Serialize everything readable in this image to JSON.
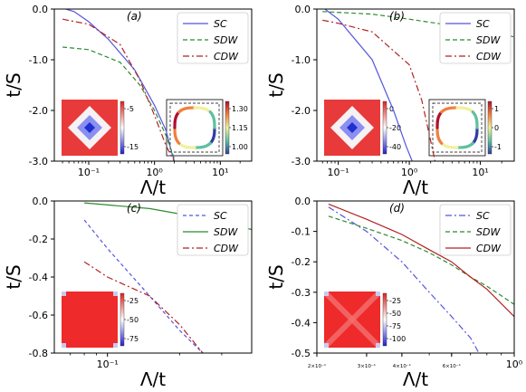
{
  "chart_data": [
    {
      "type": "line",
      "panel_label": "(a)",
      "xscale": "log",
      "xlim": [
        0.03,
        30
      ],
      "ylim": [
        -3.0,
        0.0
      ],
      "xlabel": "Λ/t",
      "ylabel": "t/S",
      "yticks": [
        "0.0",
        "-1.0",
        "-2.0",
        "-3.0"
      ],
      "xticks": [
        "10⁻¹",
        "10⁰",
        "10¹"
      ],
      "legend_position": "top-right",
      "series": [
        {
          "name": "SC",
          "x": [
            0.045,
            0.06,
            0.1,
            0.2,
            0.5,
            1.0,
            1.5,
            1.8,
            2.0
          ],
          "y": [
            0.0,
            -0.05,
            -0.25,
            -0.6,
            -1.2,
            -1.9,
            -2.4,
            -2.8,
            -3.0
          ]
        },
        {
          "name": "SDW",
          "x": [
            0.04,
            0.1,
            0.3,
            0.6,
            1.0,
            1.5,
            2.0
          ],
          "y": [
            -0.75,
            -0.8,
            -1.05,
            -1.5,
            -2.0,
            -2.5,
            -2.95
          ]
        },
        {
          "name": "CDW",
          "x": [
            0.04,
            0.1,
            0.3,
            0.6,
            1.0,
            1.5,
            2.0
          ],
          "y": [
            -0.2,
            -0.3,
            -0.7,
            -1.4,
            -2.1,
            -2.7,
            -3.0
          ]
        }
      ],
      "insets": [
        {
          "kind": "heatmap-diamond",
          "colorbar_ticks": [
            "-5",
            "-15"
          ]
        },
        {
          "kind": "fermi-surface",
          "colorbar_ticks": [
            "1.30",
            "1.15",
            "1.00"
          ]
        }
      ]
    },
    {
      "type": "line",
      "panel_label": "(b)",
      "xscale": "log",
      "xlim": [
        0.05,
        30
      ],
      "ylim": [
        -3.0,
        0.0
      ],
      "xlabel": "Λ/t",
      "ylabel": "t/S",
      "yticks": [
        "0.0",
        "-1.0",
        "-2.0",
        "-3.0"
      ],
      "xticks": [
        "10⁻¹",
        "10⁰",
        "10¹"
      ],
      "legend_position": "top-right",
      "series": [
        {
          "name": "SC",
          "x": [
            0.065,
            0.1,
            0.3,
            0.6,
            0.9,
            1.1
          ],
          "y": [
            0.0,
            -0.2,
            -1.0,
            -2.0,
            -2.7,
            -3.0
          ]
        },
        {
          "name": "SDW",
          "x": [
            0.06,
            0.3,
            1.0,
            3.0,
            10,
            30
          ],
          "y": [
            -0.05,
            -0.1,
            -0.2,
            -0.3,
            -0.4,
            -0.55
          ]
        },
        {
          "name": "CDW",
          "x": [
            0.06,
            0.1,
            0.3,
            1.0,
            1.5,
            2.0,
            2.3
          ],
          "y": [
            -0.22,
            -0.28,
            -0.45,
            -1.1,
            -1.8,
            -2.6,
            -3.0
          ]
        }
      ],
      "insets": [
        {
          "kind": "heatmap-diamond",
          "colorbar_ticks": [
            "0",
            "-20",
            "-40"
          ]
        },
        {
          "kind": "fermi-surface",
          "colorbar_ticks": [
            "1",
            "0",
            "-1"
          ]
        }
      ]
    },
    {
      "type": "line",
      "panel_label": "(c)",
      "xscale": "log",
      "xlim": [
        0.06,
        0.4
      ],
      "ylim": [
        -0.8,
        0.0
      ],
      "xlabel": "Λ/t",
      "ylabel": "t/S",
      "yticks": [
        "0.0",
        "-0.2",
        "-0.4",
        "-0.6",
        "-0.8"
      ],
      "xticks": [
        "10⁻¹"
      ],
      "legend_position": "top-right",
      "series": [
        {
          "name": "SC",
          "x": [
            0.08,
            0.1,
            0.15,
            0.2,
            0.25
          ],
          "y": [
            -0.1,
            -0.25,
            -0.5,
            -0.68,
            -0.8
          ]
        },
        {
          "name": "SDW",
          "x": [
            0.08,
            0.15,
            0.25,
            0.4
          ],
          "y": [
            -0.01,
            -0.04,
            -0.09,
            -0.15
          ]
        },
        {
          "name": "CDW",
          "x": [
            0.08,
            0.1,
            0.15,
            0.2,
            0.25
          ],
          "y": [
            -0.32,
            -0.4,
            -0.5,
            -0.65,
            -0.8
          ]
        }
      ],
      "insets": [
        {
          "kind": "heatmap-uniform",
          "colorbar_ticks": [
            "-25",
            "-50",
            "-75"
          ]
        }
      ]
    },
    {
      "type": "line",
      "panel_label": "(d)",
      "xscale": "log",
      "xlim": [
        0.2,
        1.0
      ],
      "ylim": [
        -0.5,
        0.0
      ],
      "xlabel": "Λ/t",
      "ylabel": "t/S",
      "yticks": [
        "0.0",
        "-0.1",
        "-0.2",
        "-0.3",
        "-0.4",
        "-0.5"
      ],
      "xticks": [
        "2×10⁻¹",
        "3×10⁻¹",
        "4×10⁻¹",
        "6×10⁻¹",
        "10⁰"
      ],
      "legend_position": "top-right",
      "series": [
        {
          "name": "SC",
          "x": [
            0.22,
            0.3,
            0.4,
            0.5,
            0.6,
            0.7,
            0.75
          ],
          "y": [
            -0.02,
            -0.1,
            -0.2,
            -0.3,
            -0.38,
            -0.45,
            -0.5
          ]
        },
        {
          "name": "SDW",
          "x": [
            0.22,
            0.3,
            0.4,
            0.5,
            0.6,
            0.7,
            0.8,
            1.0
          ],
          "y": [
            -0.05,
            -0.09,
            -0.13,
            -0.17,
            -0.21,
            -0.25,
            -0.28,
            -0.34
          ]
        },
        {
          "name": "CDW",
          "x": [
            0.22,
            0.3,
            0.4,
            0.5,
            0.6,
            0.7,
            0.8,
            1.0
          ],
          "y": [
            -0.01,
            -0.06,
            -0.11,
            -0.16,
            -0.2,
            -0.25,
            -0.29,
            -0.38
          ]
        }
      ],
      "insets": [
        {
          "kind": "heatmap-cross",
          "colorbar_ticks": [
            "-25",
            "-50",
            "-75",
            "-100"
          ]
        }
      ]
    }
  ],
  "styles": {
    "SC": {
      "color": "#5555dd"
    },
    "SDW": {
      "color": "#2e8b2e"
    },
    "CDW": {
      "color": "#b22222"
    }
  }
}
